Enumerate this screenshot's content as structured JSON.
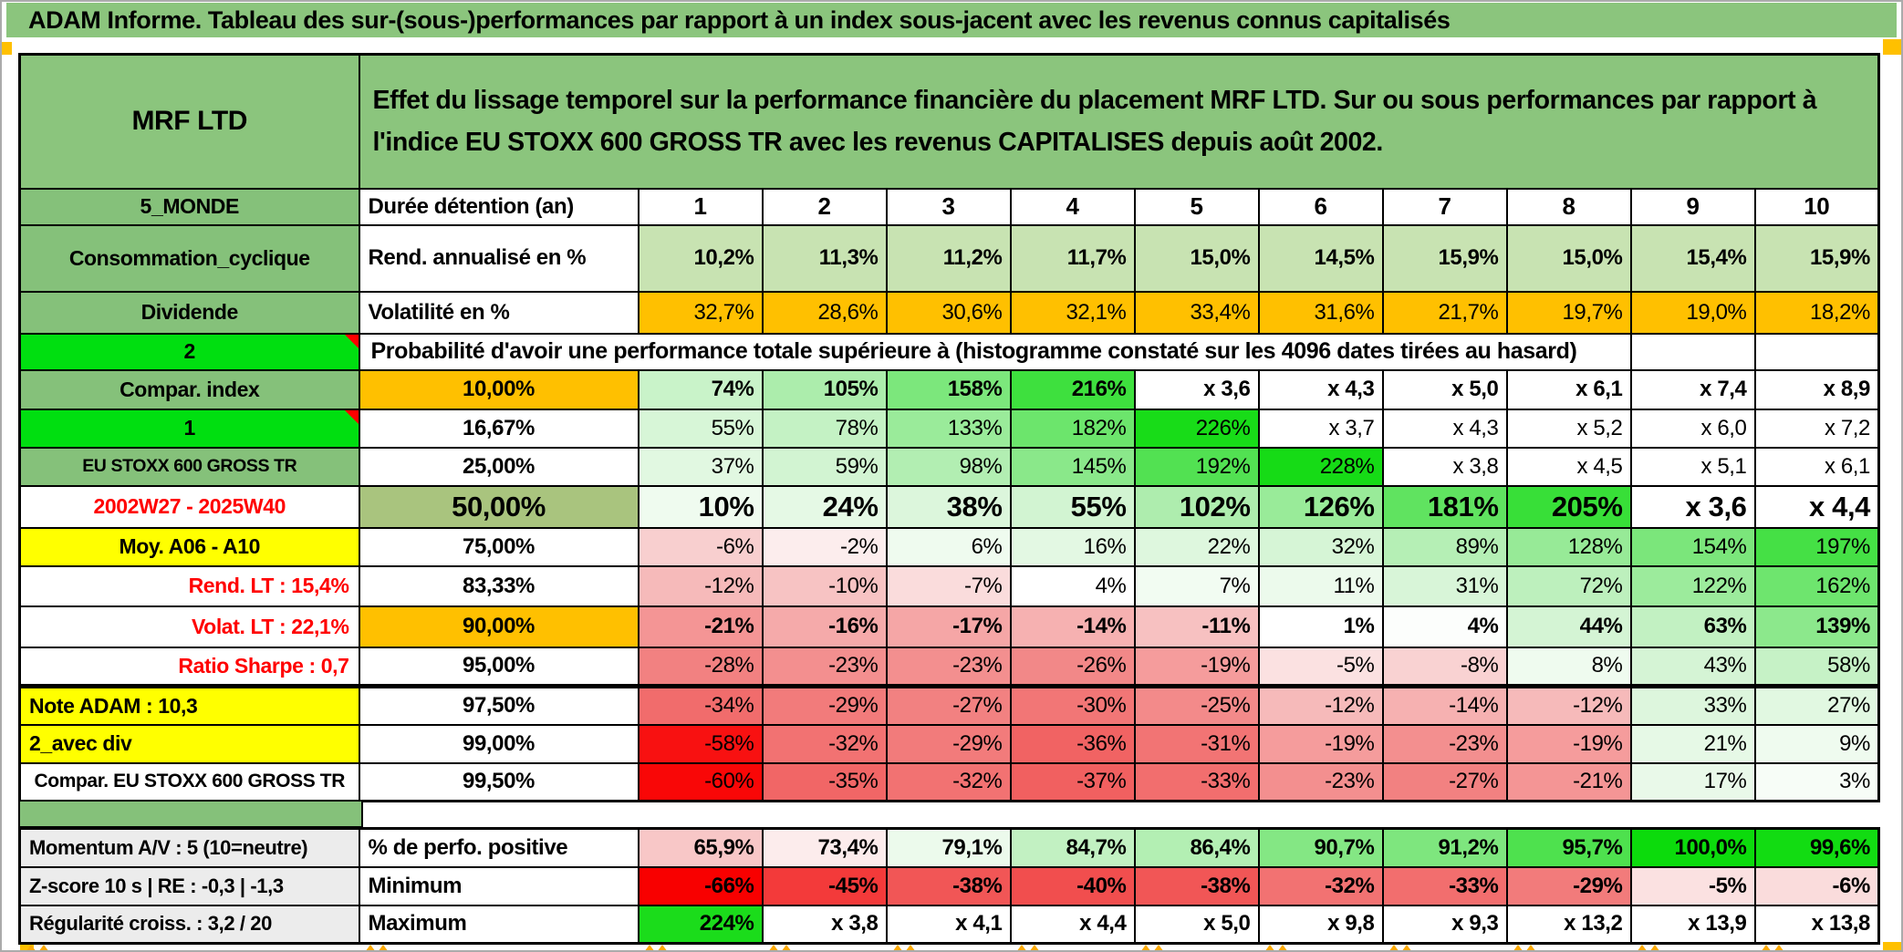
{
  "title": "ADAM Informe. Tableau des sur-(sous-)performances par rapport à un index sous-jacent avec les revenus connus capitalisés",
  "header": {
    "name": "MRF LTD",
    "description": "Effet du lissage temporel sur la performance financière du placement MRF LTD. Sur ou sous performances par rapport à l'indice EU STOXX 600 GROSS TR avec les revenus CAPITALISES depuis août 2002."
  },
  "colors": {
    "title_green": "#8BC57D",
    "label_green": "#85C17A",
    "bright_green": "#00DF10",
    "orange": "#FFC000",
    "yellow": "#FFFF00",
    "gray_label": "#ECECEC",
    "red_text": "#FF0000",
    "metric50_green": "#A9C47E",
    "annualized_green": "#C8E3B2",
    "comment_marker_red": "#FF0000",
    "corner_orange": "#FFC000"
  },
  "table": {
    "rows": [
      {
        "kind": "cols",
        "label": "5_MONDE",
        "metric": "Durée détention (an)",
        "metric_al": "left",
        "values": [
          "1",
          "2",
          "3",
          "4",
          "5",
          "6",
          "7",
          "8",
          "9",
          "10"
        ]
      },
      {
        "kind": "data",
        "label": "Consommation_cyclique",
        "metric": "Rend. annualisé en %",
        "metric_al": "left",
        "vbold": true,
        "values": [
          "10,2%",
          "11,3%",
          "11,2%",
          "11,7%",
          "15,0%",
          "14,5%",
          "15,9%",
          "15,0%",
          "15,4%",
          "15,9%"
        ],
        "bgs": [
          "#C8E3B2",
          "#C8E3B2",
          "#C8E3B2",
          "#C8E3B2",
          "#C8E3B2",
          "#C8E3B2",
          "#C8E3B2",
          "#C8E3B2",
          "#C8E3B2",
          "#C8E3B2"
        ]
      },
      {
        "kind": "data",
        "label": "Dividende",
        "metric": "Volatilité en %",
        "metric_al": "left",
        "values": [
          "32,7%",
          "28,6%",
          "30,6%",
          "32,1%",
          "33,4%",
          "31,6%",
          "21,7%",
          "19,7%",
          "19,0%",
          "18,2%"
        ],
        "bgs": [
          "#FFC000",
          "#FFC000",
          "#FFC000",
          "#FFC000",
          "#FFC000",
          "#FFC000",
          "#FFC000",
          "#FFC000",
          "#FFC000",
          "#FFC000"
        ]
      },
      {
        "kind": "note",
        "label": "2",
        "label_bg": "bright",
        "marker": true,
        "tail": 2,
        "text": "Probabilité d'avoir une performance totale supérieure à (histogramme constaté sur les 4096 dates tirées au hasard)"
      },
      {
        "kind": "data",
        "label": "Compar. index",
        "metric": "10,00%",
        "metric_bg": "#FFC000",
        "vbold": true,
        "values": [
          "74%",
          "105%",
          "158%",
          "216%",
          "x 3,6",
          "x 4,3",
          "x 5,0",
          "x 6,1",
          "x 7,4",
          "x 8,9"
        ],
        "bgs": [
          "#C9F3C9",
          "#ACEDAC",
          "#7CE77C",
          "#3EE03E",
          "#FFFFFF",
          "#FFFFFF",
          "#FFFFFF",
          "#FFFFFF",
          "#FFFFFF",
          "#FFFFFF"
        ]
      },
      {
        "kind": "data",
        "label": "1",
        "label_bg": "bright",
        "marker": true,
        "metric": "16,67%",
        "values": [
          "55%",
          "78%",
          "133%",
          "182%",
          "226%",
          "x 3,7",
          "x 4,3",
          "x 5,2",
          "x 6,0",
          "x 7,2"
        ],
        "bgs": [
          "#D7F6D7",
          "#C4F2C4",
          "#9AEB9A",
          "#6CE56C",
          "#18DC18",
          "#FFFFFF",
          "#FFFFFF",
          "#FFFFFF",
          "#FFFFFF",
          "#FFFFFF"
        ]
      },
      {
        "kind": "data",
        "label": "EU STOXX 600 GROSS TR",
        "label_sz": "sm",
        "metric": "25,00%",
        "values": [
          "37%",
          "59%",
          "98%",
          "145%",
          "192%",
          "228%",
          "x 3,8",
          "x 4,5",
          "x 5,1",
          "x 6,1"
        ],
        "bgs": [
          "#E1F8E1",
          "#D2F4D2",
          "#B2EEB2",
          "#8AE88A",
          "#52E152",
          "#16DB16",
          "#FFFFFF",
          "#FFFFFF",
          "#FFFFFF",
          "#FFFFFF"
        ]
      },
      {
        "kind": "data",
        "label": "2002W27 - 2025W40",
        "label_bg": "#FFFFFF",
        "label_fg": "#FF0000",
        "metric": "50,00%",
        "metric_bg": "#A9C47E",
        "metric_sz": "lg",
        "vbold": true,
        "vsz": "lg",
        "values": [
          "10%",
          "24%",
          "38%",
          "55%",
          "102%",
          "126%",
          "181%",
          "205%",
          "x 3,6",
          "x 4,4"
        ],
        "bgs": [
          "#EFFBEF",
          "#E5F9E5",
          "#DCF6DC",
          "#D2F4D2",
          "#AEEDAE",
          "#99EB99",
          "#60E360",
          "#38DF38",
          "#FFFFFF",
          "#FFFFFF"
        ]
      },
      {
        "kind": "data",
        "label": "Moy. A06 - A10",
        "label_bg": "#FFFF00",
        "metric": "75,00%",
        "values": [
          "-6%",
          "-2%",
          "6%",
          "16%",
          "22%",
          "32%",
          "89%",
          "128%",
          "154%",
          "197%"
        ],
        "bgs": [
          "#F8CFCF",
          "#FCEDED",
          "#EFFBEF",
          "#E3F8E3",
          "#DEF7DE",
          "#D6F5D6",
          "#B5EFB5",
          "#97EA97",
          "#7BE67B",
          "#45E045"
        ]
      },
      {
        "kind": "data",
        "label": "Rend. LT :   15,4%",
        "label_bg": "#FFFFFF",
        "label_fg": "#FF0000",
        "label_al": "right",
        "metric": "83,33%",
        "values": [
          "-12%",
          "-10%",
          "-7%",
          "4%",
          "7%",
          "11%",
          "31%",
          "72%",
          "122%",
          "162%"
        ],
        "bgs": [
          "#F6BABA",
          "#F7C3C3",
          "#FADCDC",
          "#FFFFFF",
          "#F2FCF2",
          "#ECFAEC",
          "#D8F5D8",
          "#BDF0BD",
          "#9CEB9C",
          "#6EE56E"
        ]
      },
      {
        "kind": "data",
        "label": "Volat. LT :   22,1%",
        "label_bg": "#FFFFFF",
        "label_fg": "#FF0000",
        "label_al": "right",
        "metric": "90,00%",
        "metric_bg": "#FFC000",
        "vbold": true,
        "values": [
          "-21%",
          "-16%",
          "-17%",
          "-14%",
          "-11%",
          "1%",
          "4%",
          "44%",
          "63%",
          "139%"
        ],
        "bgs": [
          "#F49595",
          "#F5AAAA",
          "#F5A6A6",
          "#F6B1B1",
          "#F7C1C1",
          "#FFFFFF",
          "#FCFEFC",
          "#D4F4D4",
          "#C2F1C2",
          "#8CE88C"
        ]
      },
      {
        "kind": "data",
        "label": "Ratio Sharpe :   0,7",
        "label_bg": "#FFFFFF",
        "label_fg": "#FF0000",
        "label_al": "right",
        "metric": "95,00%",
        "values": [
          "-28%",
          "-23%",
          "-23%",
          "-26%",
          "-19%",
          "-5%",
          "-8%",
          "8%",
          "43%",
          "58%"
        ],
        "bgs": [
          "#F28181",
          "#F38F8F",
          "#F38F8F",
          "#F28888",
          "#F59C9C",
          "#FBE1E1",
          "#F9D2D2",
          "#EFFBEF",
          "#D5F4D5",
          "#C6F2C6"
        ]
      },
      {
        "kind": "data",
        "label": "Note ADAM : 10,3",
        "label_bg": "#FFFF00",
        "label_al": "left",
        "metric": "97,50%",
        "thick_top": true,
        "values": [
          "-34%",
          "-29%",
          "-27%",
          "-30%",
          "-25%",
          "-12%",
          "-14%",
          "-12%",
          "33%",
          "27%"
        ],
        "bgs": [
          "#F16C6C",
          "#F27B7B",
          "#F28181",
          "#F27676",
          "#F38A8A",
          "#F6BABA",
          "#F6B1B1",
          "#F6BABA",
          "#DDF6DD",
          "#E1F8E1"
        ]
      },
      {
        "kind": "data",
        "label": "2_avec div",
        "label_bg": "#FFFF00",
        "label_al": "left",
        "metric": "99,00%",
        "values": [
          "-58%",
          "-32%",
          "-29%",
          "-36%",
          "-31%",
          "-19%",
          "-23%",
          "-19%",
          "21%",
          "9%"
        ],
        "bgs": [
          "#F81111",
          "#F27272",
          "#F27B7B",
          "#F16363",
          "#F27474",
          "#F59C9C",
          "#F38F8F",
          "#F59C9C",
          "#E6F9E6",
          "#EFFBEF"
        ]
      },
      {
        "kind": "data",
        "label": "Compar. EU STOXX 600 GROSS TR",
        "label_bg": "#FFFFFF",
        "label_sz": "sm2",
        "metric": "99,50%",
        "values": [
          "-60%",
          "-35%",
          "-32%",
          "-37%",
          "-33%",
          "-23%",
          "-27%",
          "-21%",
          "17%",
          "3%"
        ],
        "bgs": [
          "#F90707",
          "#F16666",
          "#F27272",
          "#F16060",
          "#F26E6E",
          "#F38F8F",
          "#F28181",
          "#F49595",
          "#E9F9E9",
          "#F7FDF7"
        ]
      }
    ],
    "bottom_rows": [
      {
        "label": "Momentum A/V : 5 (10=neutre)",
        "metric": "% de perfo. positive",
        "values": [
          "65,9%",
          "73,4%",
          "79,1%",
          "84,7%",
          "86,4%",
          "90,7%",
          "91,2%",
          "95,7%",
          "100,0%",
          "99,6%"
        ],
        "bgs": [
          "#F8C7C7",
          "#FCECEC",
          "#ECFAEC",
          "#C2F1C2",
          "#B3EFB3",
          "#84E784",
          "#7EE67E",
          "#4EE14E",
          "#0CDB0C",
          "#12DC12"
        ]
      },
      {
        "label": "Z-score 10 s | RE : -0,3 | -1,3",
        "metric": "Minimum",
        "values": [
          "-66%",
          "-45%",
          "-38%",
          "-40%",
          "-38%",
          "-32%",
          "-33%",
          "-29%",
          "-5%",
          "-6%"
        ],
        "bgs": [
          "#F80000",
          "#F33A3A",
          "#F15656",
          "#F14E4E",
          "#F15656",
          "#F27272",
          "#F26E6E",
          "#F27B7B",
          "#FBE1E1",
          "#FADCDC"
        ]
      },
      {
        "label": "Régularité croiss. : 3,2 / 20",
        "metric": "Maximum",
        "values": [
          "224%",
          "x 3,8",
          "x 4,1",
          "x 4,4",
          "x 5,0",
          "x 9,8",
          "x 9,3",
          "x 13,2",
          "x 13,9",
          "x 13,8"
        ],
        "bgs": [
          "#1BDC1B",
          "#FFFFFF",
          "#FFFFFF",
          "#FFFFFF",
          "#FFFFFF",
          "#FFFFFF",
          "#FFFFFF",
          "#FFFFFF",
          "#FFFFFF",
          "#FFFFFF"
        ]
      }
    ]
  }
}
